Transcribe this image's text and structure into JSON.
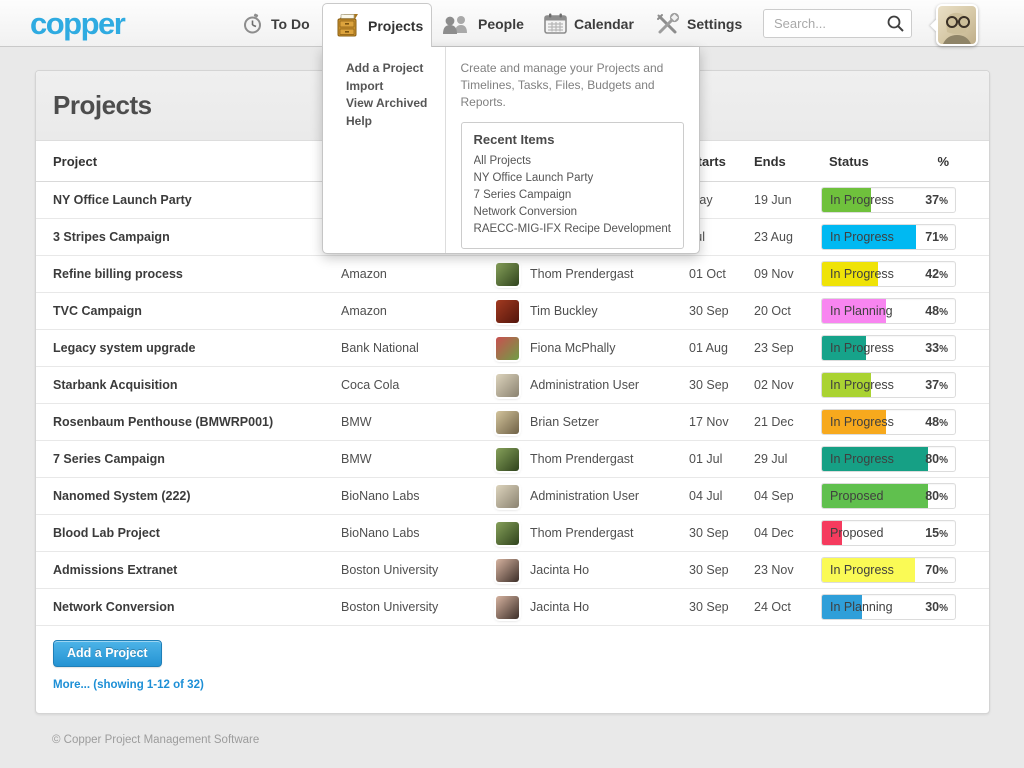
{
  "nav": {
    "logo": "copper",
    "todo": {
      "label": "To Do"
    },
    "projects_tab": {
      "label": "Projects"
    },
    "people": {
      "label": "People"
    },
    "calendar": {
      "label": "Calendar"
    },
    "settings": {
      "label": "Settings"
    },
    "search": {
      "placeholder": "Search..."
    }
  },
  "projects_menu": {
    "items": [
      "Add a Project",
      "Import",
      "View Archived",
      "Help"
    ],
    "description": "Create and manage your Projects and Timelines, Tasks, Files, Budgets and Reports.",
    "recent": {
      "title": "Recent Items",
      "items": [
        "All Projects",
        "NY Office Launch Party",
        "7 Series Campaign",
        "Network Conversion",
        "RAECC-MIG-IFX Recipe Development"
      ]
    }
  },
  "page": {
    "title": "Projects"
  },
  "table": {
    "headers": {
      "project": "Project",
      "starts": "Starts",
      "ends": "Ends",
      "status": "Status",
      "pct": "%"
    },
    "rows": [
      {
        "project": "NY Office Launch Party",
        "client": "",
        "owner": "",
        "avatar": null,
        "starts": "May",
        "ends": "19 Jun",
        "status": "In Progress",
        "pct": 37,
        "bar_color": "#6fc13c"
      },
      {
        "project": "3 Stripes Campaign",
        "client": "",
        "owner": "",
        "avatar": null,
        "starts": "Jul",
        "ends": "23 Aug",
        "status": "In Progress",
        "pct": 71,
        "bar_color": "#00b9f2"
      },
      {
        "project": "Refine billing process",
        "client": "Amazon",
        "owner": "Thom Prendergast",
        "avatar": [
          "#86a05a",
          "#2f431c"
        ],
        "starts": "01 Oct",
        "ends": "09 Nov",
        "status": "In Progress",
        "pct": 42,
        "bar_color": "#efe307"
      },
      {
        "project": "TVC Campaign",
        "client": "Amazon",
        "owner": "Tim Buckley",
        "avatar": [
          "#a23a20",
          "#53150c"
        ],
        "starts": "30 Sep",
        "ends": "20 Oct",
        "status": "In Planning",
        "pct": 48,
        "bar_color": "#f885f0"
      },
      {
        "project": "Legacy system upgrade",
        "client": "Bank National",
        "owner": "Fiona McPhally",
        "avatar": [
          "#c95050",
          "#6f9e46"
        ],
        "starts": "01 Aug",
        "ends": "23 Sep",
        "status": "In Progress",
        "pct": 33,
        "bar_color": "#16a38a"
      },
      {
        "project": "Starbank Acquisition",
        "client": "Coca Cola",
        "owner": "Administration User",
        "avatar": [
          "#ddd4bd",
          "#8a8270"
        ],
        "starts": "30 Sep",
        "ends": "02 Nov",
        "status": "In Progress",
        "pct": 37,
        "bar_color": "#aad332"
      },
      {
        "project": "Rosenbaum Penthouse (BMWRP001)",
        "client": "BMW",
        "owner": "Brian Setzer",
        "avatar": [
          "#d3c49c",
          "#6f6146"
        ],
        "starts": "17 Nov",
        "ends": "21 Dec",
        "status": "In Progress",
        "pct": 48,
        "bar_color": "#f7a91d"
      },
      {
        "project": "7 Series Campaign",
        "client": "BMW",
        "owner": "Thom Prendergast",
        "avatar": [
          "#86a05a",
          "#2f431c"
        ],
        "starts": "01 Jul",
        "ends": "29 Jul",
        "status": "In Progress",
        "pct": 80,
        "bar_color": "#16a085"
      },
      {
        "project": "Nanomed System (222)",
        "client": "BioNano Labs",
        "owner": "Administration User",
        "avatar": [
          "#ddd4bd",
          "#8a8270"
        ],
        "starts": "04 Jul",
        "ends": "04 Sep",
        "status": "Proposed",
        "pct": 80,
        "bar_color": "#60c04e"
      },
      {
        "project": "Blood Lab Project",
        "client": "BioNano Labs",
        "owner": "Thom Prendergast",
        "avatar": [
          "#86a05a",
          "#2f431c"
        ],
        "starts": "30 Sep",
        "ends": "04 Dec",
        "status": "Proposed",
        "pct": 15,
        "bar_color": "#f53b5e"
      },
      {
        "project": "Admissions Extranet",
        "client": "Boston University",
        "owner": "Jacinta Ho",
        "avatar": [
          "#d6b3a0",
          "#3c2e28"
        ],
        "starts": "30 Sep",
        "ends": "23 Nov",
        "status": "In Progress",
        "pct": 70,
        "bar_color": "#fafa55"
      },
      {
        "project": "Network Conversion",
        "client": "Boston University",
        "owner": "Jacinta Ho",
        "avatar": [
          "#d6b3a0",
          "#3c2e28"
        ],
        "starts": "30 Sep",
        "ends": "24 Oct",
        "status": "In Planning",
        "pct": 30,
        "bar_color": "#2f9fd9"
      }
    ]
  },
  "actions": {
    "add_project": "Add a Project",
    "more": "More... (showing 1-12 of 32)"
  },
  "footer": {
    "copyright": "© Copper Project Management Software"
  }
}
